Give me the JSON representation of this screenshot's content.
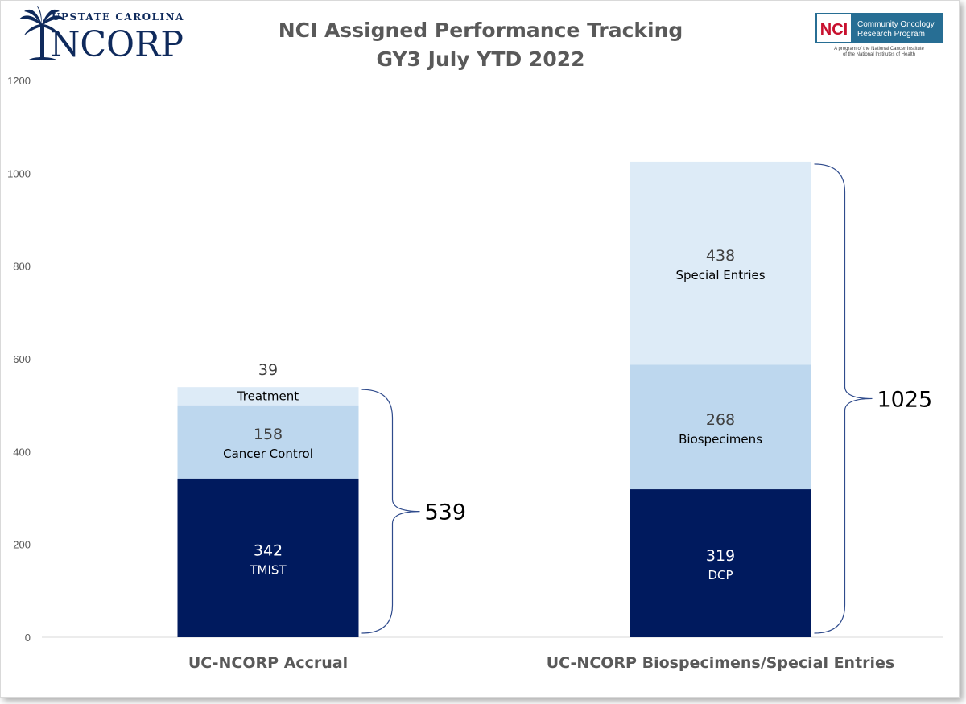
{
  "logos": {
    "left": {
      "top_text": "UPSTATE CAROLINA",
      "main_text": "NCORP"
    },
    "right": {
      "badge": "NCI",
      "line1": "Community Oncology",
      "line2": "Research Program",
      "sub1": "A program of the National Cancer Institute",
      "sub2": "of the National Institutes of Health"
    }
  },
  "colors": {
    "dark": "#001A5E",
    "mid": "#BDD7EE",
    "light": "#DDEBF7",
    "brace": "#2F4B8C"
  },
  "chart_data": {
    "type": "bar",
    "stacked": true,
    "title": "NCI Assigned Performance Tracking",
    "subtitle": "GY3 July YTD 2022",
    "categories": [
      "UC-NCORP Accrual",
      "UC-NCORP Biospecimens/Special Entries"
    ],
    "yticks": [
      "0",
      "200",
      "400",
      "600",
      "800",
      "1000",
      "1200"
    ],
    "ylim": [
      0,
      1200
    ],
    "grid": false,
    "stacks": [
      {
        "category": "UC-NCORP Accrual",
        "total": "539",
        "segments": [
          {
            "value": 342,
            "value_label": "342",
            "label": "TMIST",
            "tone": "dark"
          },
          {
            "value": 158,
            "value_label": "158",
            "label": "Cancer Control",
            "tone": "mid"
          },
          {
            "value": 39,
            "value_label": "39",
            "label": "Treatment",
            "tone": "light"
          }
        ]
      },
      {
        "category": "UC-NCORP Biospecimens/Special Entries",
        "total": "1025",
        "segments": [
          {
            "value": 319,
            "value_label": "319",
            "label": "DCP",
            "tone": "dark"
          },
          {
            "value": 268,
            "value_label": "268",
            "label": "Biospecimens",
            "tone": "mid"
          },
          {
            "value": 438,
            "value_label": "438",
            "label": "Special Entries",
            "tone": "light"
          }
        ]
      }
    ]
  }
}
